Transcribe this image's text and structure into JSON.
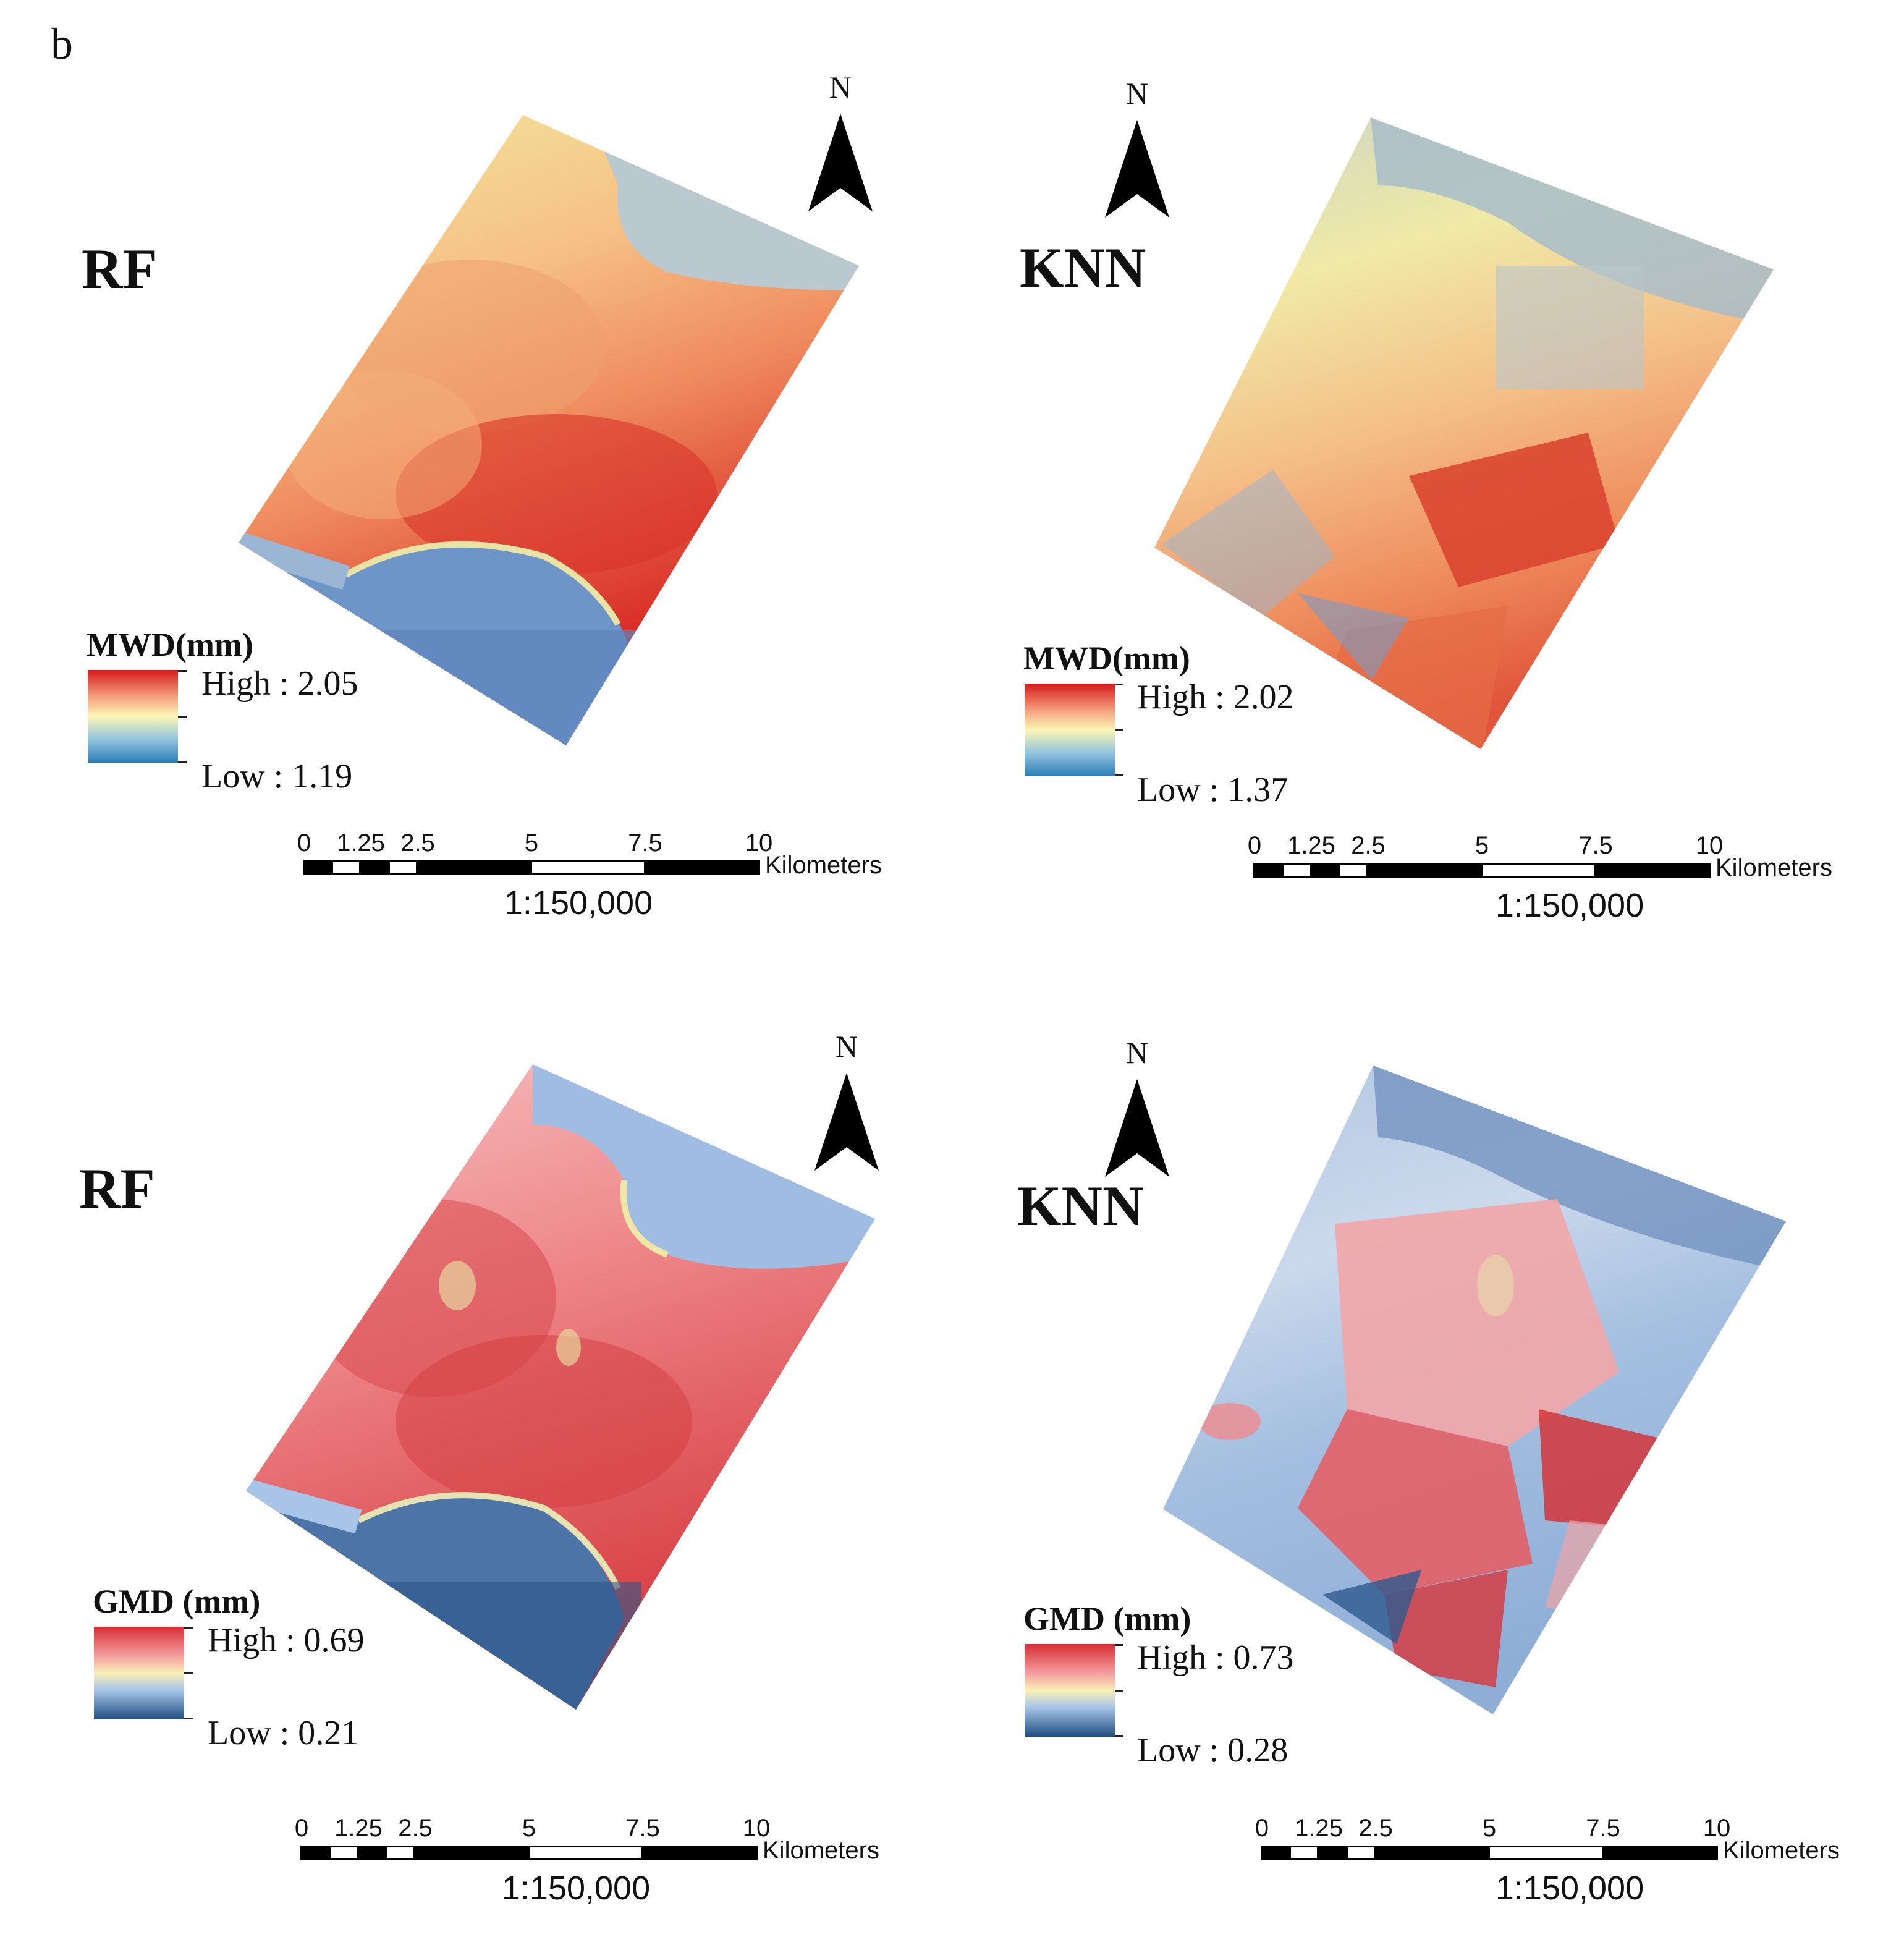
{
  "figure_label": "b",
  "panels": [
    {
      "id": "rf-mwd",
      "model": "RF",
      "legend_title": "MWD(mm)",
      "high_label": "High : 2.05",
      "low_label": "Low : 1.19",
      "variable": "MWD",
      "palette": "mwd",
      "scale_ratio": "1:150,000"
    },
    {
      "id": "knn-mwd",
      "model": "KNN",
      "legend_title": "MWD(mm)",
      "high_label": "High : 2.02",
      "low_label": "Low : 1.37",
      "variable": "MWD",
      "palette": "mwd",
      "scale_ratio": "1:150,000"
    },
    {
      "id": "rf-gmd",
      "model": "RF",
      "legend_title": "GMD (mm)",
      "high_label": "High : 0.69",
      "low_label": "Low : 0.21",
      "variable": "GMD",
      "palette": "gmd",
      "scale_ratio": "1:150,000"
    },
    {
      "id": "knn-gmd",
      "model": "KNN",
      "legend_title": "GMD (mm)",
      "high_label": "High : 0.73",
      "low_label": "Low : 0.28",
      "variable": "GMD",
      "palette": "gmd",
      "scale_ratio": "1:150,000"
    }
  ],
  "north_label": "N",
  "scale_bar": {
    "ticks": [
      "0",
      "1.25",
      "2.5",
      "5",
      "7.5",
      "10"
    ],
    "unit": "Kilometers"
  },
  "colors": {
    "mwd_high": "#d7191c",
    "mwd_mid": "#fbf6b4",
    "mwd_low": "#2c7bb6",
    "gmd_high": "#d62f35",
    "gmd_mid": "#f8f0b6",
    "gmd_low": "#1f4d80"
  }
}
